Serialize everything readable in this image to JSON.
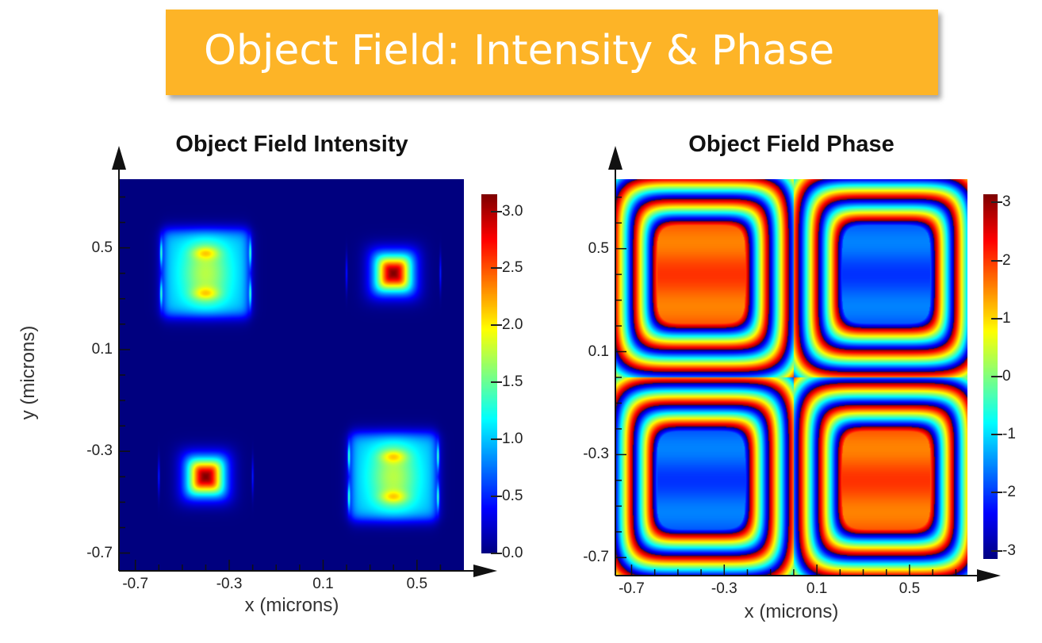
{
  "banner": {
    "title": "Object Field: Intensity & Phase",
    "color": "#fdb427"
  },
  "chart_data": [
    {
      "type": "heatmap",
      "title": "Object Field Intensity",
      "xlabel": "x (microns)",
      "ylabel": "y (microns)",
      "xlim": [
        -0.77,
        0.7
      ],
      "ylim": [
        -0.77,
        0.77
      ],
      "xticks": [
        "-0.7",
        "-0.3",
        "0.1",
        "0.5"
      ],
      "yticks": [
        "0.5",
        "0.1",
        "-0.3",
        "-0.7"
      ],
      "colormap": "jet",
      "colorbar": {
        "range": [
          0.0,
          3.15
        ],
        "ticks": [
          "3.0",
          "2.5",
          "2.0",
          "1.5",
          "1.0",
          "0.5",
          "0.0"
        ]
      },
      "features": [
        {
          "shape": "double-lobed square",
          "center": [
            -0.4,
            0.4
          ],
          "peak": 2.3
        },
        {
          "shape": "single peak",
          "center": [
            0.4,
            0.4
          ],
          "peak": 3.15
        },
        {
          "shape": "single peak",
          "center": [
            -0.4,
            -0.4
          ],
          "peak": 3.15
        },
        {
          "shape": "double-lobed square",
          "center": [
            0.4,
            -0.4
          ],
          "peak": 2.3
        }
      ],
      "background": 0.0
    },
    {
      "type": "heatmap",
      "title": "Object Field Phase",
      "xlabel": "x (microns)",
      "ylabel": "",
      "xlim": [
        -0.77,
        0.75
      ],
      "ylim": [
        -0.77,
        0.77
      ],
      "xticks": [
        "-0.7",
        "-0.3",
        "0.1",
        "0.5"
      ],
      "yticks": [
        "0.5",
        "0.1",
        "-0.3",
        "-0.7"
      ],
      "colormap": "jet",
      "colorbar": {
        "range": [
          -3.14,
          3.14
        ],
        "ticks": [
          "3",
          "2",
          "1",
          "0",
          "-1",
          "-2",
          "-3"
        ]
      },
      "features": [
        {
          "shape": "square plateau",
          "center": [
            -0.4,
            0.4
          ],
          "value": 1.8
        },
        {
          "shape": "square plateau",
          "center": [
            0.4,
            0.4
          ],
          "value": -1.8
        },
        {
          "shape": "square plateau",
          "center": [
            -0.4,
            -0.4
          ],
          "value": -1.8
        },
        {
          "shape": "square plateau",
          "center": [
            0.4,
            -0.4
          ],
          "value": 1.8
        }
      ]
    }
  ]
}
